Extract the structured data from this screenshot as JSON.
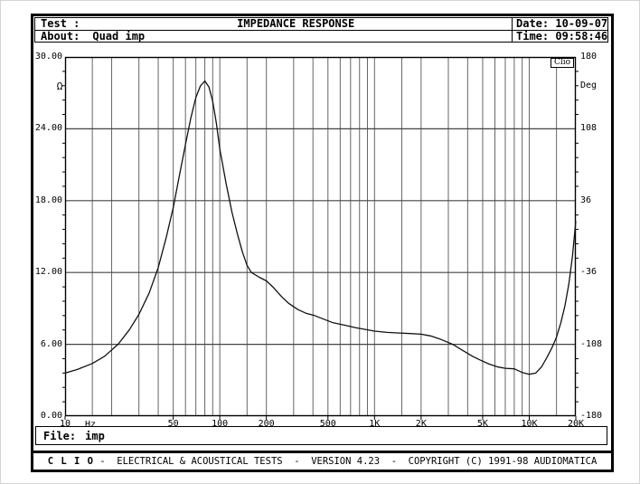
{
  "header": {
    "test_label": "Test :",
    "title": "IMPEDANCE RESPONSE",
    "date_label": "Date:",
    "date_value": "10-09-07",
    "about_label": "About:",
    "about_value": "Quad imp",
    "time_label": "Time:",
    "time_value": "09:58:46"
  },
  "file_bar": {
    "label": "File:",
    "value": "imp"
  },
  "footer": {
    "brand": "C L I O",
    "rest": " -  ELECTRICAL & ACOUSTICAL TESTS  -  VERSION 4.23  -  COPYRIGHT (C) 1991-98 AUDIOMATICA"
  },
  "colors": {
    "background": "#ffffff",
    "frame": "#000000",
    "grid_vertical": "#666666",
    "grid_horizontal": "#444444",
    "curve": "#111111"
  },
  "chart_data": {
    "type": "line",
    "title": "IMPEDANCE RESPONSE",
    "watermark": "Clio",
    "x_axis": {
      "unit_label": "Hz",
      "scale": "log",
      "min": 10,
      "max": 20000,
      "tick_values": [
        10,
        50,
        100,
        200,
        500,
        1000,
        2000,
        5000,
        10000,
        20000
      ],
      "tick_labels": [
        "10",
        "50",
        "100",
        "200",
        "500",
        "1K",
        "2K",
        "5K",
        "10K",
        "20K"
      ],
      "grid_freqs": [
        15,
        20,
        30,
        40,
        50,
        60,
        70,
        80,
        90,
        100,
        150,
        200,
        300,
        400,
        500,
        600,
        700,
        800,
        900,
        1000,
        1500,
        2000,
        3000,
        4000,
        5000,
        6000,
        7000,
        8000,
        9000,
        10000,
        15000
      ]
    },
    "y_left": {
      "label": "Ω",
      "unit": "ohm",
      "min": 0,
      "max": 30,
      "tick_labels": [
        "30.00",
        "24.00",
        "18.00",
        "12.00",
        "6.00",
        "0.00"
      ]
    },
    "y_right": {
      "label": "Deg",
      "unit": "degrees",
      "min": -180,
      "max": 180,
      "tick_labels": [
        "180",
        "108",
        "36",
        "-36",
        "-108",
        "-180"
      ]
    },
    "grid": true,
    "series": [
      {
        "name": "impedance-magnitude",
        "unit": "ohm",
        "points": [
          [
            10,
            3.6
          ],
          [
            12,
            3.9
          ],
          [
            15,
            4.4
          ],
          [
            18,
            5.0
          ],
          [
            22,
            6.0
          ],
          [
            26,
            7.2
          ],
          [
            30,
            8.5
          ],
          [
            35,
            10.3
          ],
          [
            40,
            12.4
          ],
          [
            45,
            14.9
          ],
          [
            50,
            17.4
          ],
          [
            55,
            20.2
          ],
          [
            60,
            22.7
          ],
          [
            65,
            24.9
          ],
          [
            70,
            26.6
          ],
          [
            75,
            27.6
          ],
          [
            80,
            28.0
          ],
          [
            85,
            27.5
          ],
          [
            90,
            26.3
          ],
          [
            95,
            24.5
          ],
          [
            100,
            22.3
          ],
          [
            110,
            19.4
          ],
          [
            120,
            17.0
          ],
          [
            130,
            15.2
          ],
          [
            140,
            13.7
          ],
          [
            150,
            12.6
          ],
          [
            160,
            12.0
          ],
          [
            180,
            11.6
          ],
          [
            200,
            11.3
          ],
          [
            220,
            10.8
          ],
          [
            250,
            10.0
          ],
          [
            280,
            9.4
          ],
          [
            320,
            8.9
          ],
          [
            360,
            8.6
          ],
          [
            410,
            8.4
          ],
          [
            470,
            8.1
          ],
          [
            540,
            7.8
          ],
          [
            640,
            7.6
          ],
          [
            750,
            7.4
          ],
          [
            870,
            7.25
          ],
          [
            1000,
            7.1
          ],
          [
            1200,
            7.0
          ],
          [
            1400,
            6.95
          ],
          [
            1700,
            6.9
          ],
          [
            2000,
            6.85
          ],
          [
            2300,
            6.7
          ],
          [
            2700,
            6.4
          ],
          [
            3200,
            6.0
          ],
          [
            3700,
            5.5
          ],
          [
            4300,
            5.0
          ],
          [
            4800,
            4.7
          ],
          [
            5500,
            4.35
          ],
          [
            6300,
            4.1
          ],
          [
            7000,
            4.0
          ],
          [
            8000,
            3.95
          ],
          [
            9000,
            3.65
          ],
          [
            10000,
            3.5
          ],
          [
            11000,
            3.6
          ],
          [
            12000,
            4.1
          ],
          [
            13000,
            4.9
          ],
          [
            14000,
            5.7
          ],
          [
            15000,
            6.6
          ],
          [
            16000,
            7.8
          ],
          [
            17000,
            9.2
          ],
          [
            18000,
            11.0
          ],
          [
            19000,
            13.3
          ],
          [
            20000,
            16.3
          ]
        ]
      }
    ]
  }
}
